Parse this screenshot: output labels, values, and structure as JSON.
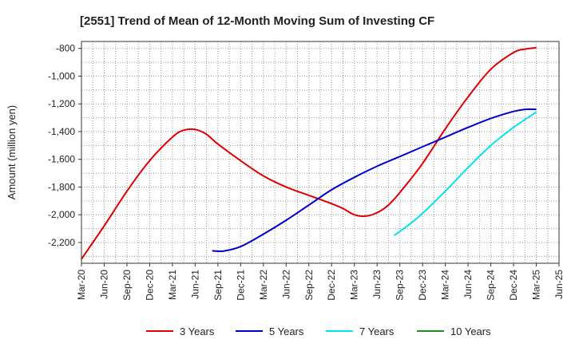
{
  "chart_data": {
    "type": "line",
    "title": "[2551]  Trend of Mean of 12-Month Moving Sum of Investing CF",
    "xlabel": "",
    "ylabel": "Amount (million yen)",
    "ylim": [
      -2350,
      -750
    ],
    "yticks": [
      -800,
      -1000,
      -1200,
      -1400,
      -1600,
      -1800,
      -2000,
      -2200
    ],
    "ytick_labels": [
      "-800",
      "-1,000",
      "-1,200",
      "-1,400",
      "-1,600",
      "-1,800",
      "-2,000",
      "-2,200"
    ],
    "x_tick_labels": [
      "Mar-20",
      "Jun-20",
      "Sep-20",
      "Dec-20",
      "Mar-21",
      "Jun-21",
      "Sep-21",
      "Dec-21",
      "Mar-22",
      "Jun-22",
      "Sep-22",
      "Dec-22",
      "Mar-23",
      "Jun-23",
      "Sep-23",
      "Dec-23",
      "Mar-24",
      "Jun-24",
      "Sep-24",
      "Dec-24",
      "Mar-25",
      "Jun-25"
    ],
    "grid": true,
    "legend_position": "bottom",
    "series": [
      {
        "name": "3 Years",
        "color": "#e00000",
        "points": [
          [
            0,
            -2320
          ],
          [
            1,
            -2080
          ],
          [
            2,
            -1830
          ],
          [
            3,
            -1610
          ],
          [
            4,
            -1440
          ],
          [
            4.5,
            -1390
          ],
          [
            5,
            -1385
          ],
          [
            5.5,
            -1420
          ],
          [
            6,
            -1490
          ],
          [
            7,
            -1610
          ],
          [
            8,
            -1720
          ],
          [
            9,
            -1800
          ],
          [
            10,
            -1860
          ],
          [
            11,
            -1920
          ],
          [
            11.5,
            -1955
          ],
          [
            12,
            -2000
          ],
          [
            12.5,
            -2010
          ],
          [
            13,
            -1985
          ],
          [
            13.5,
            -1930
          ],
          [
            14,
            -1840
          ],
          [
            15,
            -1630
          ],
          [
            16,
            -1380
          ],
          [
            17,
            -1150
          ],
          [
            18,
            -950
          ],
          [
            19,
            -830
          ],
          [
            19.5,
            -805
          ],
          [
            20,
            -795
          ]
        ]
      },
      {
        "name": "5 Years",
        "color": "#0000cc",
        "points": [
          [
            5.75,
            -2260
          ],
          [
            6.25,
            -2262
          ],
          [
            7,
            -2230
          ],
          [
            8,
            -2140
          ],
          [
            9,
            -2040
          ],
          [
            10,
            -1930
          ],
          [
            11,
            -1820
          ],
          [
            12,
            -1730
          ],
          [
            13,
            -1650
          ],
          [
            14,
            -1580
          ],
          [
            15,
            -1510
          ],
          [
            16,
            -1440
          ],
          [
            17,
            -1370
          ],
          [
            18,
            -1305
          ],
          [
            19,
            -1255
          ],
          [
            19.5,
            -1240
          ],
          [
            20,
            -1240
          ]
        ]
      },
      {
        "name": "7 Years",
        "color": "#00e5ee",
        "points": [
          [
            13.75,
            -2150
          ],
          [
            14.5,
            -2060
          ],
          [
            15,
            -1990
          ],
          [
            16,
            -1830
          ],
          [
            17,
            -1660
          ],
          [
            18,
            -1500
          ],
          [
            19,
            -1370
          ],
          [
            20,
            -1260
          ]
        ]
      },
      {
        "name": "10 Years",
        "color": "#228b22",
        "points": []
      }
    ]
  }
}
